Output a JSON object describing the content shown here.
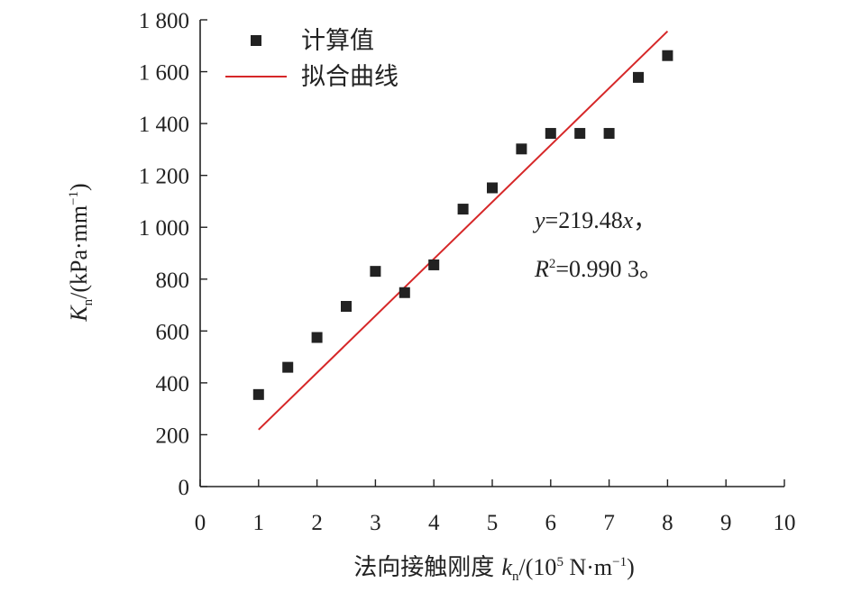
{
  "chart_data": {
    "type": "scatter",
    "xlim": [
      0,
      10
    ],
    "ylim": [
      0,
      1800
    ],
    "x_ticks": [
      "0",
      "1",
      "2",
      "3",
      "4",
      "5",
      "6",
      "7",
      "8",
      "9",
      "10"
    ],
    "y_ticks": [
      "0",
      "200",
      "400",
      "600",
      "800",
      "1 000",
      "1 200",
      "1 400",
      "1 600",
      "1 800"
    ],
    "xlabel": {
      "prefix": "法向接触刚度 ",
      "var": "k",
      "sub": "n",
      "mid": "/(10",
      "sup": "5",
      "mid2": " N·m",
      "sup2": "−1",
      "suffix": ")"
    },
    "ylabel": {
      "var": "K",
      "sub": "n",
      "mid": "/(kPa·mm",
      "sup": "−1",
      "suffix": ")"
    },
    "series": [
      {
        "name": "计算值",
        "marker": "square",
        "color": "#222222",
        "points": [
          {
            "x": 1.0,
            "y": 355
          },
          {
            "x": 1.5,
            "y": 460
          },
          {
            "x": 2.0,
            "y": 575
          },
          {
            "x": 2.5,
            "y": 695
          },
          {
            "x": 3.0,
            "y": 830
          },
          {
            "x": 3.5,
            "y": 748
          },
          {
            "x": 4.0,
            "y": 855
          },
          {
            "x": 4.5,
            "y": 1070
          },
          {
            "x": 5.0,
            "y": 1152
          },
          {
            "x": 5.5,
            "y": 1302
          },
          {
            "x": 6.0,
            "y": 1362
          },
          {
            "x": 6.5,
            "y": 1362
          },
          {
            "x": 7.0,
            "y": 1362
          },
          {
            "x": 7.5,
            "y": 1578
          },
          {
            "x": 8.0,
            "y": 1662
          }
        ]
      },
      {
        "name": "拟合曲线",
        "type": "line",
        "color": "#d62728",
        "slope": 219.48,
        "x_range": [
          1,
          8
        ]
      }
    ],
    "annotation": {
      "line1": {
        "var": "y",
        "rest": "=219.48",
        "var2": "x",
        "tail": "，"
      },
      "line2": {
        "var": "R",
        "sup": "2",
        "rest": "=0.990 3。"
      }
    },
    "legend_position": "top-left",
    "grid": false
  }
}
